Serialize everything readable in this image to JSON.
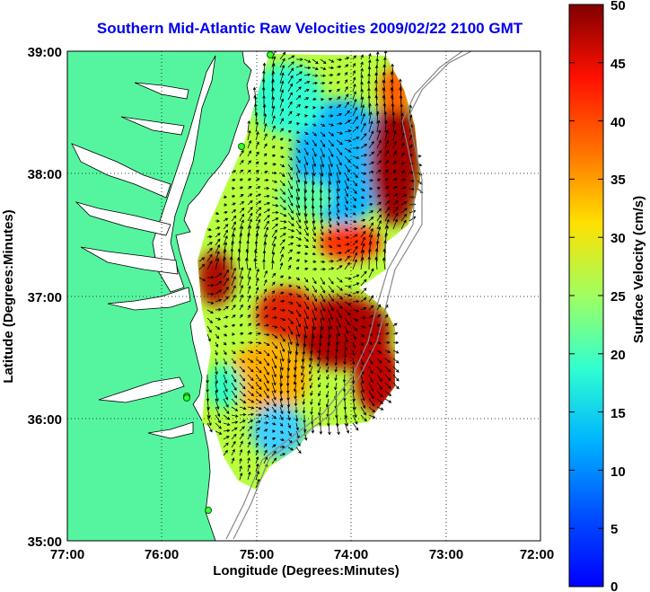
{
  "title": "Southern Mid-Atlantic Raw Velocities 2009/02/22 2100 GMT",
  "map": {
    "xlabel": "Longitude (Degrees:Minutes)",
    "ylabel": "Latitude (Degrees:Minutes)",
    "x_ticks": [
      "77:00",
      "76:00",
      "75:00",
      "74:00",
      "73:00",
      "72:00"
    ],
    "y_ticks": [
      "39:00",
      "38:00",
      "37:00",
      "36:00",
      "35:00"
    ],
    "lon_range": [
      -77,
      -72
    ],
    "lat_range": [
      35,
      39
    ],
    "grid": "dotted",
    "land_color": "#55f5a0",
    "vector_color": "#000000",
    "coast_stations": 5
  },
  "colorbar": {
    "label": "Surface Velocity (cm/s)",
    "ticks": [
      "0",
      "5",
      "10",
      "15",
      "20",
      "25",
      "30",
      "35",
      "40",
      "45",
      "50"
    ],
    "range": [
      0,
      50
    ],
    "colormap": "jet"
  }
}
